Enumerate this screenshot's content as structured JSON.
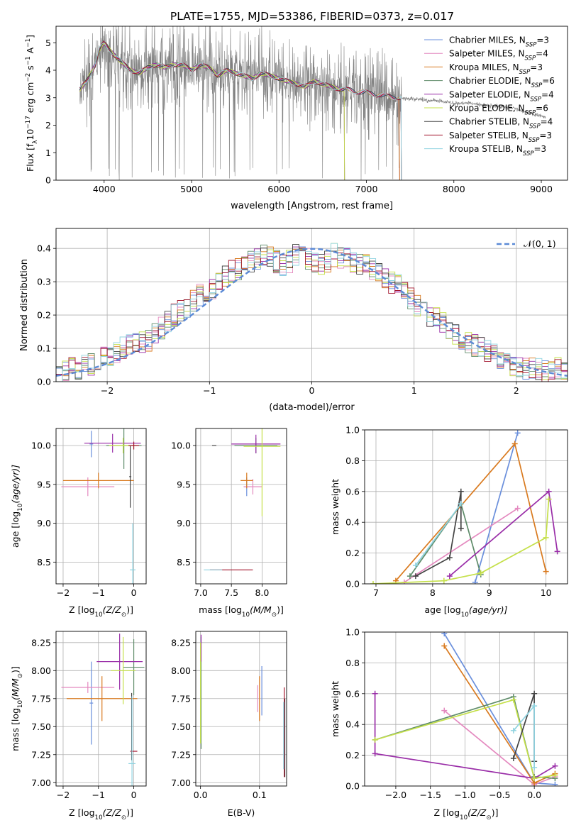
{
  "figure": {
    "title": "PLATE=1755, MJD=53386, FIBERID=0373, z=0.017"
  },
  "series": [
    {
      "name": "Chabrier MILES, N$_{SSP}$=3",
      "legend": "Chabrier MILES, N",
      "nssp": "3",
      "color": "#6a8fdc"
    },
    {
      "name": "Salpeter MILES, N$_{SSP}$=4",
      "legend": "Salpeter MILES, N",
      "nssp": "4",
      "color": "#e489bf"
    },
    {
      "name": "Kroupa MILES, N$_{SSP}$=3",
      "legend": "Kroupa MILES, N",
      "nssp": "3",
      "color": "#d97a1f"
    },
    {
      "name": "Chabrier ELODIE, N$_{SSP}$=6",
      "legend": "Chabrier ELODIE, N",
      "nssp": "6",
      "color": "#5f8c6a"
    },
    {
      "name": "Salpeter ELODIE, N$_{SSP}$=4",
      "legend": "Salpeter ELODIE, N",
      "nssp": "4",
      "color": "#9a2ea8"
    },
    {
      "name": "Kroupa ELODIE, N$_{SSP}$=6",
      "legend": "Kroupa ELODIE, N",
      "nssp": "6",
      "color": "#c5e04a"
    },
    {
      "name": "Chabrier STELIB, N$_{SSP}$=4",
      "legend": "Chabrier STELIB, N",
      "nssp": "4",
      "color": "#444444"
    },
    {
      "name": "Salpeter STELIB, N$_{SSP}$=3",
      "legend": "Salpeter STELIB, N",
      "nssp": "3",
      "color": "#a3162e"
    },
    {
      "name": "Kroupa STELIB, N$_{SSP}$=3",
      "legend": "Kroupa STELIB, N",
      "nssp": "3",
      "color": "#8fd3e0"
    }
  ],
  "legend_sub": "SSP",
  "chart_data": [
    {
      "id": "spectrum",
      "type": "line",
      "title": "PLATE=1755, MJD=53386, FIBERID=0373, z=0.017",
      "xlabel": "wavelength [Angstrom, rest frame]",
      "ylabel_parts": [
        "Flux [f",
        "λ",
        "10",
        "−17",
        " erg cm",
        "−2",
        " s",
        "−1",
        " A",
        "−1",
        "]"
      ],
      "xlim": [
        3450,
        9300
      ],
      "ylim": [
        0,
        5.6
      ],
      "xticks": [
        4000,
        5000,
        6000,
        7000,
        8000,
        9000
      ],
      "yticks": [
        0,
        1,
        2,
        3,
        4,
        5
      ],
      "data_color": "#808080",
      "data_envelope": {
        "x": [
          3720,
          3800,
          3900,
          3950,
          4000,
          4100,
          4200,
          4300,
          4400,
          4500,
          4600,
          4700,
          4800,
          4900,
          5000,
          5100,
          5200,
          5300,
          5400,
          5500,
          5600,
          5700,
          5800,
          5900,
          6000,
          6100,
          6200,
          6300,
          6400,
          6500,
          6600,
          6700,
          6800,
          6900,
          7000,
          7100,
          7200,
          7300,
          7400,
          7500,
          7600,
          7700,
          7800,
          7900,
          8000,
          8100,
          8200,
          8300,
          8400,
          8500,
          8600,
          8700,
          8800,
          8900,
          9000,
          9050
        ],
        "y": [
          3.3,
          3.6,
          4.2,
          4.8,
          5.0,
          4.6,
          4.3,
          4.0,
          3.9,
          4.1,
          4.2,
          4.1,
          4.2,
          4.2,
          4.0,
          4.2,
          4.1,
          3.8,
          4.0,
          3.9,
          3.8,
          3.7,
          3.9,
          3.8,
          3.7,
          3.6,
          3.5,
          3.4,
          3.6,
          3.5,
          3.4,
          3.3,
          3.3,
          3.2,
          3.2,
          3.1,
          3.1,
          3.0,
          3.0,
          2.95,
          2.95,
          2.9,
          2.9,
          2.85,
          2.8,
          2.8,
          2.8,
          2.75,
          2.7,
          2.7,
          2.65,
          2.6,
          2.5,
          2.4,
          2.35,
          2.3
        ]
      },
      "model_cutoffs": [
        7380,
        7380,
        7380,
        6750,
        6750,
        6750,
        7400,
        7400,
        7400
      ]
    },
    {
      "id": "residuals",
      "type": "histogram",
      "xlabel": "(data-model)/error",
      "ylabel": "Normed distribution",
      "xlim": [
        -2.5,
        2.5
      ],
      "ylim": [
        0,
        0.46
      ],
      "xticks": [
        -2,
        -1,
        0,
        1,
        2
      ],
      "yticks": [
        0.0,
        0.1,
        0.2,
        0.3,
        0.4
      ],
      "normal_label": "𝒩(0, 1)",
      "normal_color": "#5b8ad6",
      "bin_width": 0.1,
      "base_hist": [
        0.03,
        0.03,
        0.04,
        0.04,
        0.05,
        0.05,
        0.06,
        0.07,
        0.08,
        0.09,
        0.1,
        0.11,
        0.11,
        0.12,
        0.12,
        0.14,
        0.16,
        0.18,
        0.2,
        0.21,
        0.22,
        0.24,
        0.26,
        0.27,
        0.28,
        0.3,
        0.32,
        0.33,
        0.34,
        0.35,
        0.36,
        0.37,
        0.38,
        0.37,
        0.36,
        0.35,
        0.36,
        0.38,
        0.38,
        0.37,
        0.36,
        0.35,
        0.36,
        0.38,
        0.37,
        0.37,
        0.36,
        0.35,
        0.35,
        0.34,
        0.33,
        0.31,
        0.3,
        0.29,
        0.27,
        0.25,
        0.23,
        0.21,
        0.2,
        0.19,
        0.18,
        0.16,
        0.14,
        0.13,
        0.12,
        0.11,
        0.1,
        0.09,
        0.08,
        0.07,
        0.06,
        0.05,
        0.05,
        0.04,
        0.04,
        0.04,
        0.03,
        0.04,
        0.04,
        0.04
      ],
      "hist_start": -2.5
    },
    {
      "id": "age_vs_Z",
      "type": "errorbar",
      "xlabel_parts": [
        "Z [log",
        "10",
        "(Z/Z",
        "⊙",
        ")]"
      ],
      "ylabel_parts": [
        "age  [log",
        "10",
        "(age/yr)]"
      ],
      "xlim": [
        -2.2,
        0.35
      ],
      "ylim": [
        8.22,
        10.22
      ],
      "xticks": [
        -2,
        -1,
        0
      ],
      "yticks": [
        8.5,
        9.0,
        9.5,
        10.0
      ],
      "points": [
        {
          "s": 0,
          "x": -1.2,
          "y": 10.02,
          "xerr": 0.05,
          "yerr": 0.17
        },
        {
          "s": 1,
          "x": -1.3,
          "y": 9.47,
          "xerr": 0.75,
          "yerr": 0.12
        },
        {
          "s": 2,
          "x": -1.0,
          "y": 9.55,
          "xerr": 1.0,
          "yerr": 0.1
        },
        {
          "s": 3,
          "x": -0.28,
          "y": 10.0,
          "xerr": 0.5,
          "yerr": 0.3
        },
        {
          "s": 4,
          "x": -0.6,
          "y": 10.03,
          "xerr": 0.8,
          "yerr": 0.12
        },
        {
          "s": 5,
          "x": -0.3,
          "y": 10.0,
          "xerr": 0.4,
          "yerr": 0.1
        },
        {
          "s": 6,
          "x": -0.1,
          "y": 9.6,
          "xerr": 0.03,
          "yerr": 0.4
        },
        {
          "s": 7,
          "x": 0.0,
          "y": 10.0,
          "xerr": 0.15,
          "yerr": 0.05
        },
        {
          "s": 8,
          "x": -0.03,
          "y": 8.4,
          "xerr": 0.08,
          "yerr": 0.6
        }
      ]
    },
    {
      "id": "age_vs_mass",
      "type": "errorbar",
      "xlabel_parts": [
        "mass [log",
        "10",
        "(M/M",
        "⊙",
        ")]"
      ],
      "ylabel_parts": [],
      "xlim": [
        6.92,
        8.4
      ],
      "ylim": [
        8.22,
        10.22
      ],
      "xticks": [
        7.0,
        7.5,
        8.0
      ],
      "yticks": [
        8.5,
        9.0,
        9.5,
        10.0
      ],
      "points": [
        {
          "s": 0,
          "x": 7.75,
          "y": 9.47,
          "xerr": 0.05,
          "yerr": 0.12
        },
        {
          "s": 1,
          "x": 7.85,
          "y": 9.47,
          "xerr": 0.15,
          "yerr": 0.1
        },
        {
          "s": 2,
          "x": 7.75,
          "y": 9.55,
          "xerr": 0.1,
          "yerr": 0.1
        },
        {
          "s": 3,
          "x": 7.9,
          "y": 10.0,
          "xerr": 0.35,
          "yerr": 0.1
        },
        {
          "s": 4,
          "x": 7.9,
          "y": 10.02,
          "xerr": 0.4,
          "yerr": 0.12
        },
        {
          "s": 5,
          "x": 8.0,
          "y": 9.99,
          "xerr": 0.3,
          "yerr": 0.9
        },
        {
          "s": 6,
          "x": 7.22,
          "y": 10.0,
          "xerr": 0.0,
          "yerr": 0.0
        },
        {
          "s": 7,
          "x": 7.5,
          "y": 8.4,
          "xerr": 0.35,
          "yerr": 0.0
        },
        {
          "s": 8,
          "x": 7.2,
          "y": 8.4,
          "xerr": 0.15,
          "yerr": 0.0
        }
      ]
    },
    {
      "id": "weight_vs_age",
      "type": "line",
      "xlabel_parts": [
        "age  [log",
        "10",
        "(age/yr)]"
      ],
      "ylabel": "mass weight",
      "xlim": [
        6.8,
        10.38
      ],
      "ylim": [
        0,
        1.0
      ],
      "xticks": [
        7,
        8,
        9,
        10
      ],
      "yticks": [
        0.0,
        0.2,
        0.4,
        0.6,
        0.8,
        1.0
      ],
      "lines": [
        {
          "s": 0,
          "x": [
            8.75,
            9.5
          ],
          "y": [
            0.01,
            0.98
          ]
        },
        {
          "s": 1,
          "x": [
            7.5,
            9.5
          ],
          "y": [
            0.01,
            0.49
          ]
        },
        {
          "s": 2,
          "x": [
            7.35,
            9.45,
            10.0
          ],
          "y": [
            0.02,
            0.91,
            0.08
          ]
        },
        {
          "s": 3,
          "x": [
            7.6,
            8.5,
            8.85
          ],
          "y": [
            0.05,
            0.52,
            0.06
          ]
        },
        {
          "s": 4,
          "x": [
            8.3,
            10.05,
            10.2
          ],
          "y": [
            0.05,
            0.6,
            0.21
          ]
        },
        {
          "s": 5,
          "x": [
            6.95,
            8.2,
            8.85,
            10.0,
            10.05
          ],
          "y": [
            0.0,
            0.02,
            0.07,
            0.3,
            0.55
          ]
        },
        {
          "s": 6,
          "x": [
            7.7,
            8.3,
            8.5,
            8.5
          ],
          "y": [
            0.05,
            0.17,
            0.6,
            0.36
          ]
        },
        {
          "s": 7,
          "x": [],
          "y": []
        },
        {
          "s": 8,
          "x": [
            7.7,
            8.5
          ],
          "y": [
            0.12,
            0.52
          ]
        }
      ]
    },
    {
      "id": "mass_vs_Z",
      "type": "errorbar",
      "xlabel_parts": [
        "Z [log",
        "10",
        "(Z/Z",
        "⊙",
        ")]"
      ],
      "ylabel_parts": [
        "mass [log",
        "10",
        "(M/M",
        "⊙",
        ")]"
      ],
      "xlim": [
        -2.2,
        0.35
      ],
      "ylim": [
        6.97,
        8.35
      ],
      "xticks": [
        -2,
        -1,
        0
      ],
      "yticks": [
        7.0,
        7.25,
        7.5,
        7.75,
        8.0,
        8.25
      ],
      "points": [
        {
          "s": 0,
          "x": -1.2,
          "y": 7.71,
          "xerr": 0.05,
          "yerr": 0.37
        },
        {
          "s": 1,
          "x": -1.3,
          "y": 7.85,
          "xerr": 0.75,
          "yerr": 0.05
        },
        {
          "s": 2,
          "x": -0.9,
          "y": 7.75,
          "xerr": 1.0,
          "yerr": 0.2
        },
        {
          "s": 3,
          "x": 0.0,
          "y": 8.03,
          "xerr": 0.3,
          "yerr": 0.25
        },
        {
          "s": 4,
          "x": -0.4,
          "y": 8.08,
          "xerr": 0.65,
          "yerr": 0.25
        },
        {
          "s": 5,
          "x": -0.3,
          "y": 8.0,
          "xerr": 0.35,
          "yerr": 0.3
        },
        {
          "s": 6,
          "x": -0.06,
          "y": 7.5,
          "xerr": 0.0,
          "yerr": 0.3
        },
        {
          "s": 7,
          "x": 0.0,
          "y": 7.28,
          "xerr": 0.1,
          "yerr": 0.0
        },
        {
          "s": 8,
          "x": -0.05,
          "y": 7.17,
          "xerr": 0.1,
          "yerr": 0.6
        }
      ]
    },
    {
      "id": "mass_vs_EBV",
      "type": "errorbar",
      "xlabel": "E(B-V)",
      "ylabel_parts": [],
      "xlim": [
        -0.008,
        0.146
      ],
      "ylim": [
        6.97,
        8.35
      ],
      "xticks": [
        0.0,
        0.1
      ],
      "yticks": [
        7.0,
        7.25,
        7.5,
        7.75,
        8.0,
        8.25
      ],
      "points": [
        {
          "s": 0,
          "x": 0.104,
          "y": 7.82,
          "xerr": 0.0,
          "yerr": 0.22
        },
        {
          "s": 1,
          "x": 0.097,
          "y": 7.75,
          "xerr": 0.0,
          "yerr": 0.12
        },
        {
          "s": 2,
          "x": 0.1,
          "y": 7.75,
          "xerr": 0.0,
          "yerr": 0.2
        },
        {
          "s": 3,
          "x": 0.001,
          "y": 7.8,
          "xerr": 0.0,
          "yerr": 0.5
        },
        {
          "s": 4,
          "x": 0.001,
          "y": 8.2,
          "xerr": 0.0,
          "yerr": 0.12
        },
        {
          "s": 5,
          "x": 0.0,
          "y": 7.8,
          "xerr": 0.0,
          "yerr": 0.45
        },
        {
          "s": 6,
          "x": 0.143,
          "y": 7.4,
          "xerr": 0.0,
          "yerr": 0.35
        },
        {
          "s": 7,
          "x": 0.142,
          "y": 7.45,
          "xerr": 0.0,
          "yerr": 0.4
        },
        {
          "s": 8,
          "x": 0.141,
          "y": 7.42,
          "xerr": 0.0,
          "yerr": 0.3
        }
      ]
    },
    {
      "id": "weight_vs_Z",
      "type": "line",
      "xlabel_parts": [
        "Z [log",
        "10",
        "(Z/Z",
        "⊙",
        ")]"
      ],
      "ylabel": "mass weight",
      "xlim": [
        -2.45,
        0.48
      ],
      "ylim": [
        0,
        1.0
      ],
      "xticks": [
        -2.0,
        -1.5,
        -1.0,
        -0.5,
        0.0
      ],
      "yticks": [
        0.0,
        0.2,
        0.4,
        0.6,
        0.8,
        1.0
      ],
      "lines": [
        {
          "s": 0,
          "x": [
            -1.3,
            0.0,
            0.3
          ],
          "y": [
            0.99,
            0.02,
            0.01
          ]
        },
        {
          "s": 1,
          "x": [
            -1.3,
            0.0,
            0.3
          ],
          "y": [
            0.49,
            0.01,
            0.06
          ]
        },
        {
          "s": 2,
          "x": [
            -1.3,
            0.0,
            0.3
          ],
          "y": [
            0.91,
            0.02,
            0.08
          ]
        },
        {
          "s": 3,
          "x": [
            -2.3,
            -0.3,
            0.0,
            0.0,
            0.3
          ],
          "y": [
            0.3,
            0.58,
            0.05,
            0.06,
            0.05
          ]
        },
        {
          "s": 4,
          "x": [
            -2.3,
            -2.3,
            0.0,
            0.3
          ],
          "y": [
            0.6,
            0.21,
            0.05,
            0.13
          ]
        },
        {
          "s": 5,
          "x": [
            -2.3,
            -0.3,
            0.0,
            0.3
          ],
          "y": [
            0.3,
            0.56,
            0.05,
            0.07
          ]
        },
        {
          "s": 6,
          "x": [
            -0.3,
            0.0,
            0.0
          ],
          "y": [
            0.18,
            0.6,
            0.16
          ]
        },
        {
          "s": 7,
          "x": [],
          "y": []
        },
        {
          "s": 8,
          "x": [
            -0.3,
            0.0,
            0.0
          ],
          "y": [
            0.36,
            0.52,
            0.12
          ]
        }
      ]
    }
  ]
}
